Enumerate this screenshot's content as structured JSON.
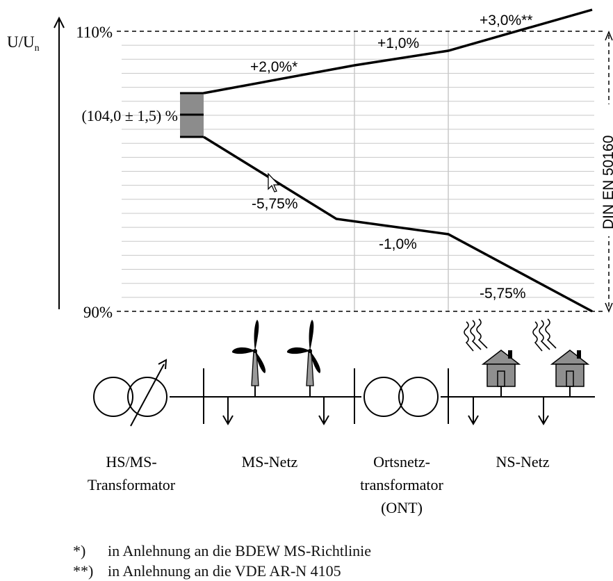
{
  "axis": {
    "y_label": "U/U",
    "y_label_sub": "n",
    "y_max_label": "110%",
    "y_min_label": "90%",
    "side_label": "DIN EN 50160"
  },
  "regulation_band": "(104,0 ± 1,5) %",
  "upper_labels": [
    "+2,0%*",
    "+1,0%",
    "+3,0%**"
  ],
  "lower_labels": [
    "-5,75%",
    "-1,0%",
    "-5,75%"
  ],
  "sections": [
    {
      "line1": "HS/MS-",
      "line2": "Transformator",
      "line3": ""
    },
    {
      "line1": "MS-Netz",
      "line2": "",
      "line3": ""
    },
    {
      "line1": "Ortsnetz-",
      "line2": "transformator",
      "line3": "(ONT)"
    },
    {
      "line1": "NS-Netz",
      "line2": "",
      "line3": ""
    }
  ],
  "footnotes": [
    {
      "mark": "*)",
      "text": "in Anlehnung an die BDEW MS-Richtlinie"
    },
    {
      "mark": "**)",
      "text": "in Anlehnung an die VDE AR-N 4105"
    }
  ],
  "colors": {
    "line": "#000000",
    "grid": "#c8c8c8",
    "band": "#8c8c8c",
    "house": "#8f8f8f",
    "turbine_tower": "#9a9a9a"
  },
  "icons": [
    "transformer-icon",
    "wind-turbine-icon",
    "house-icon",
    "heat-wave-icon",
    "load-arrow-icon"
  ]
}
